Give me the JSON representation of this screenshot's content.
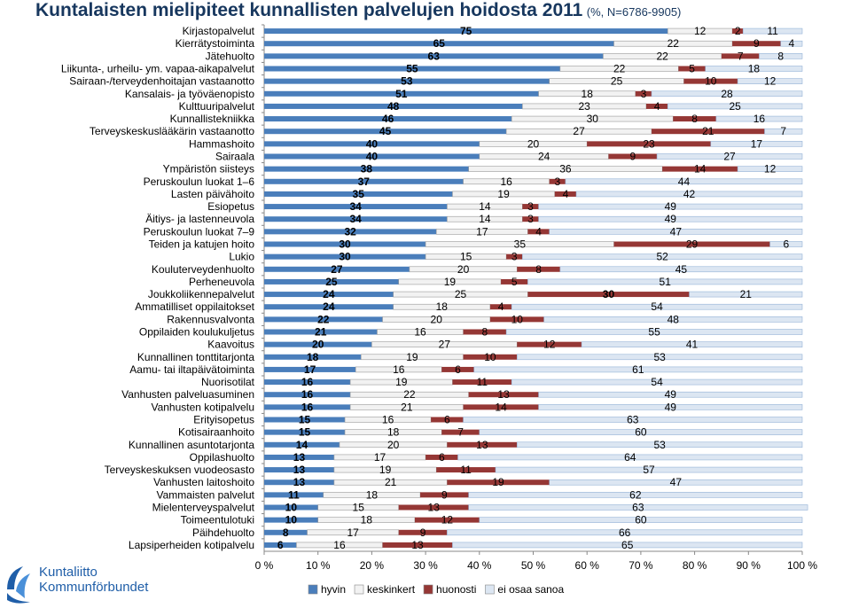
{
  "title": {
    "main": "Kuntalaisten mielipiteet kunnallisten palvelujen hoidosta 2011",
    "subtitle": "(%, N=6786-9905)"
  },
  "logo": {
    "line1": "Kuntaliitto",
    "line2": "Kommunförbundet"
  },
  "colors": {
    "hyvin": "#4a7ebb",
    "keskinkert": "#f2f2f2",
    "huonosti": "#953735",
    "ei_osaa_sanoa": "#dce6f2",
    "title": "#17375e"
  },
  "chart_data": {
    "type": "bar",
    "orientation": "horizontal",
    "stacked": true,
    "percent_axis": true,
    "xlim": [
      0,
      100
    ],
    "x_ticks": [
      "0 %",
      "10 %",
      "20 %",
      "30 %",
      "40 %",
      "50 %",
      "60 %",
      "70 %",
      "80 %",
      "90 %",
      "100 %"
    ],
    "legend": [
      "hyvin",
      "keskinkert",
      "huonosti",
      "ei osaa sanoa"
    ],
    "legend_position": "bottom",
    "categories": [
      "Kirjastopalvelut",
      "Kierrätystoiminta",
      "Jätehuolto",
      "Liikunta-, urheilu- ym. vapaa-aikapalvelut",
      "Sairaan-/terveydenhoitajan vastaanotto",
      "Kansalais- ja työväenopisto",
      "Kulttuuripalvelut",
      "Kunnallistekniikka",
      "Terveyskeskuslääkärin vastaanotto",
      "Hammashoito",
      "Sairaala",
      "Ympäristön siisteys",
      "Peruskoulun luokat 1–6",
      "Lasten päivähoito",
      "Esiopetus",
      "Äitiys- ja lastenneuvola",
      "Peruskoulun luokat 7–9",
      "Teiden ja katujen hoito",
      "Lukio",
      "Kouluterveydenhuolto",
      "Perheneuvola",
      "Joukkoliikennepalvelut",
      "Ammatilliset oppilaitokset",
      "Rakennusvalvonta",
      "Oppilaiden koulukuljetus",
      "Kaavoitus",
      "Kunnallinen tonttitarjonta",
      "Aamu- tai iltapäivätoiminta",
      "Nuorisotilat",
      "Vanhusten palveluasuminen",
      "Vanhusten kotipalvelu",
      "Erityisopetus",
      "Kotisairaanhoito",
      "Kunnallinen asuntotarjonta",
      "Oppilashuolto",
      "Terveyskeskuksen vuodeosasto",
      "Vanhusten laitoshoito",
      "Vammaisten palvelut",
      "Mielenterveyspalvelut",
      "Toimeentulotuki",
      "Päihdehuolto",
      "Lapsiperheiden kotipalvelu"
    ],
    "series": [
      {
        "name": "hyvin",
        "values": [
          75,
          65,
          63,
          55,
          53,
          51,
          48,
          46,
          45,
          40,
          40,
          38,
          37,
          35,
          34,
          34,
          32,
          30,
          30,
          27,
          25,
          24,
          24,
          22,
          21,
          20,
          18,
          17,
          16,
          16,
          16,
          15,
          15,
          14,
          13,
          13,
          13,
          11,
          10,
          10,
          8,
          6
        ]
      },
      {
        "name": "keskinkert",
        "values": [
          12,
          22,
          22,
          22,
          25,
          18,
          23,
          30,
          27,
          20,
          24,
          36,
          16,
          19,
          14,
          14,
          17,
          35,
          15,
          20,
          19,
          25,
          18,
          20,
          16,
          27,
          19,
          16,
          19,
          22,
          21,
          16,
          18,
          20,
          17,
          19,
          21,
          18,
          15,
          18,
          17,
          16
        ]
      },
      {
        "name": "huonosti",
        "values": [
          2,
          9,
          7,
          5,
          10,
          3,
          4,
          8,
          21,
          23,
          9,
          14,
          3,
          4,
          3,
          3,
          4,
          29,
          3,
          8,
          5,
          30,
          4,
          10,
          8,
          12,
          10,
          6,
          11,
          13,
          14,
          6,
          7,
          13,
          6,
          11,
          19,
          9,
          13,
          12,
          9,
          13
        ]
      },
      {
        "name": "ei osaa sanoa",
        "values": [
          11,
          4,
          8,
          18,
          12,
          28,
          25,
          16,
          7,
          17,
          27,
          12,
          44,
          42,
          49,
          49,
          47,
          6,
          52,
          45,
          51,
          21,
          54,
          48,
          55,
          41,
          53,
          61,
          54,
          49,
          49,
          63,
          60,
          53,
          64,
          57,
          47,
          62,
          63,
          60,
          66,
          65
        ]
      }
    ]
  }
}
